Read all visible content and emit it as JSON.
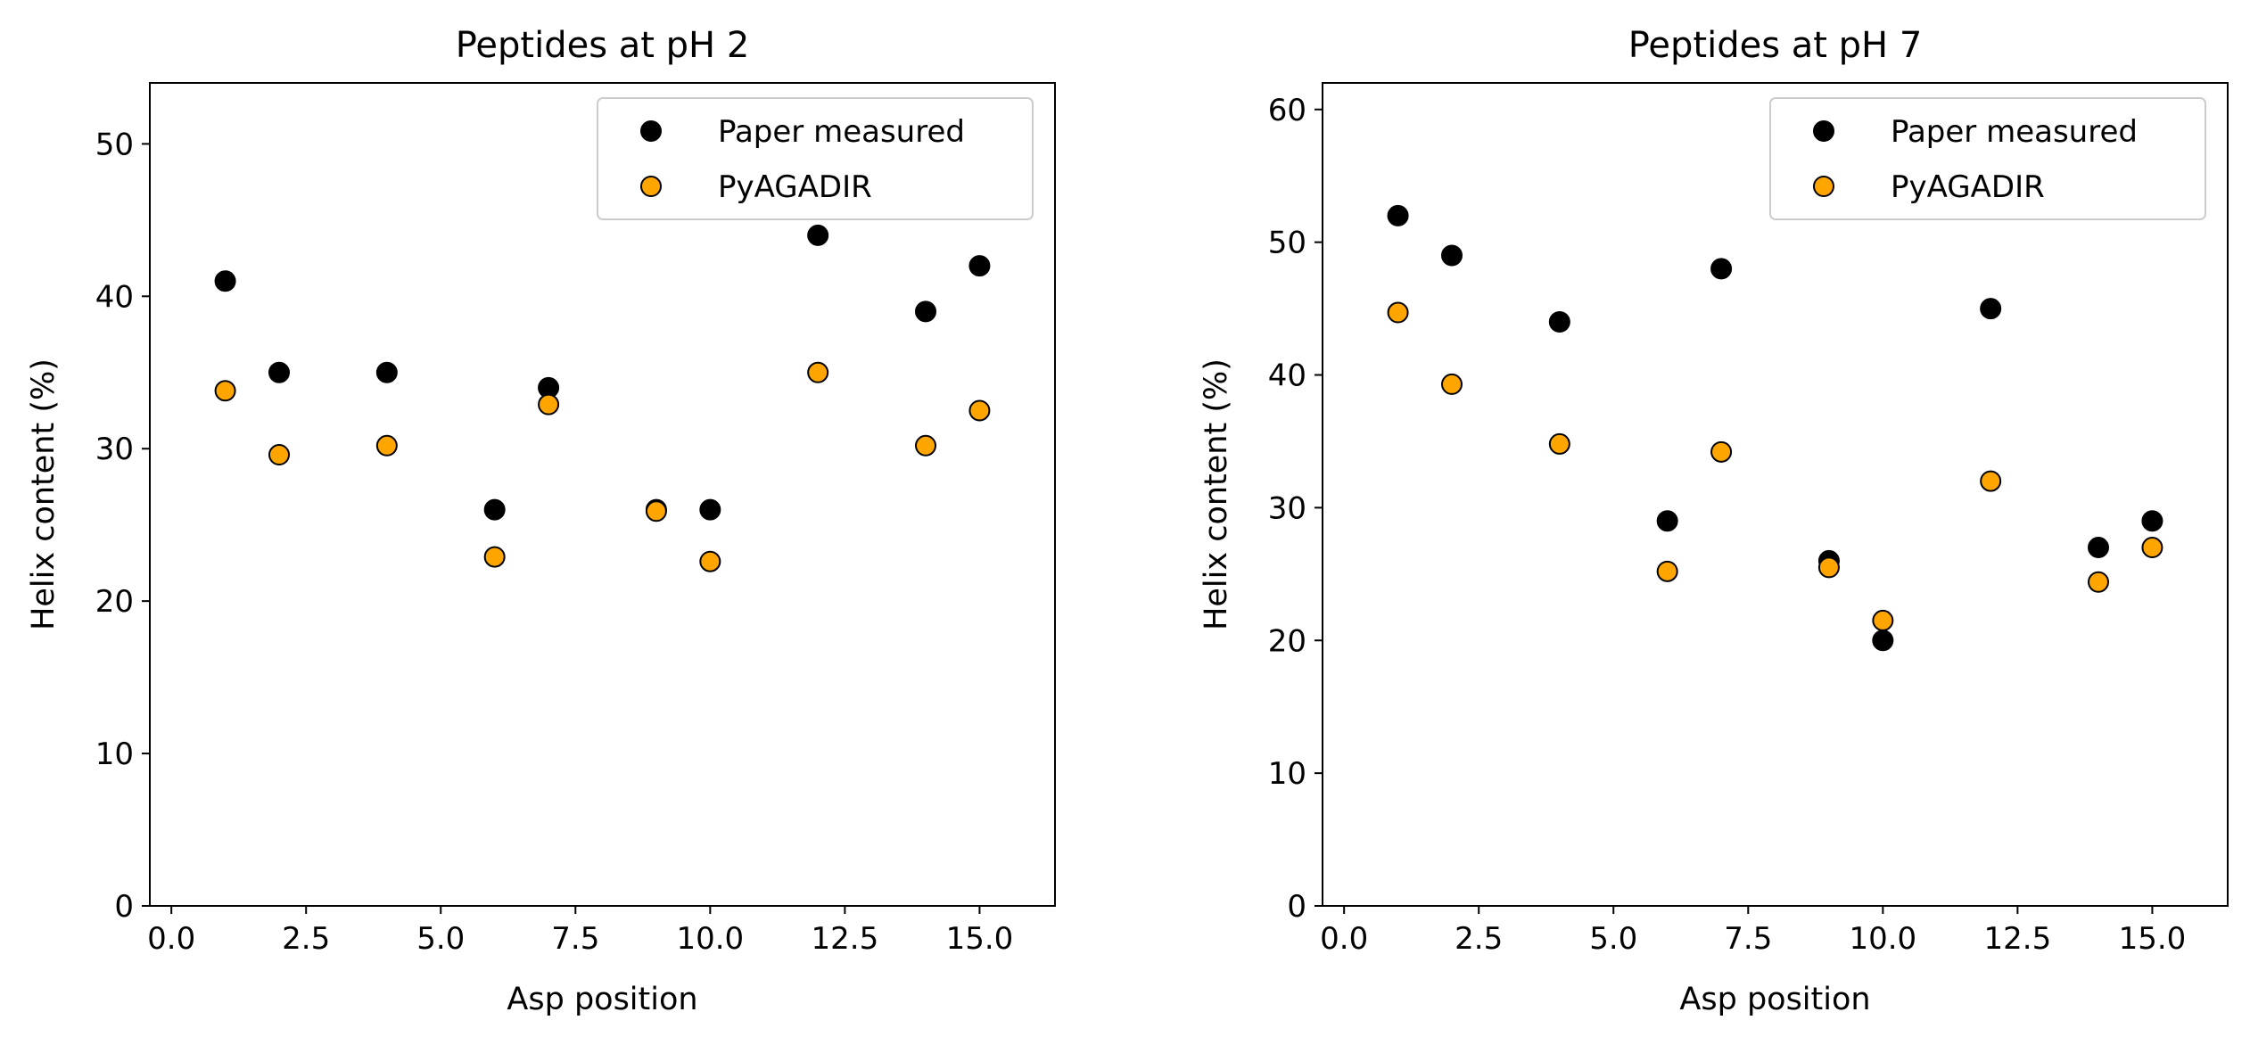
{
  "chart_data": [
    {
      "type": "scatter",
      "title": "Peptides at pH 2",
      "xlabel": "Asp position",
      "ylabel": "Helix content (%)",
      "xlim": [
        -0.4,
        16.4
      ],
      "ylim": [
        0,
        54
      ],
      "xticks": [
        0.0,
        2.5,
        5.0,
        7.5,
        10.0,
        12.5,
        15.0
      ],
      "xtick_labels": [
        "0.0",
        "2.5",
        "5.0",
        "7.5",
        "10.0",
        "12.5",
        "15.0"
      ],
      "yticks": [
        0,
        10,
        20,
        30,
        40,
        50
      ],
      "ytick_labels": [
        "0",
        "10",
        "20",
        "30",
        "40",
        "50"
      ],
      "grid": false,
      "legend": "top-right",
      "series": [
        {
          "name": "Paper measured",
          "color": "#000000",
          "edge": "#000000",
          "x": [
            1,
            2,
            4,
            6,
            7,
            9,
            10,
            12,
            14,
            15
          ],
          "y": [
            41,
            35,
            35,
            26,
            34,
            26,
            26,
            44,
            39,
            42
          ]
        },
        {
          "name": "PyAGADIR",
          "color": "#FFA500",
          "edge": "#000000",
          "x": [
            1,
            2,
            4,
            6,
            7,
            9,
            10,
            12,
            14,
            15
          ],
          "y": [
            33.8,
            29.6,
            30.2,
            22.9,
            32.9,
            25.9,
            22.6,
            35.0,
            30.2,
            32.5
          ]
        }
      ]
    },
    {
      "type": "scatter",
      "title": "Peptides at pH 7",
      "xlabel": "Asp position",
      "ylabel": "Helix content (%)",
      "xlim": [
        -0.4,
        16.4
      ],
      "ylim": [
        0,
        62
      ],
      "xticks": [
        0.0,
        2.5,
        5.0,
        7.5,
        10.0,
        12.5,
        15.0
      ],
      "xtick_labels": [
        "0.0",
        "2.5",
        "5.0",
        "7.5",
        "10.0",
        "12.5",
        "15.0"
      ],
      "yticks": [
        0,
        10,
        20,
        30,
        40,
        50,
        60
      ],
      "ytick_labels": [
        "0",
        "10",
        "20",
        "30",
        "40",
        "50",
        "60"
      ],
      "grid": false,
      "legend": "top-right",
      "series": [
        {
          "name": "Paper measured",
          "color": "#000000",
          "edge": "#000000",
          "x": [
            1,
            2,
            4,
            6,
            7,
            9,
            10,
            12,
            14,
            15
          ],
          "y": [
            52,
            49,
            44,
            29,
            48,
            26,
            20,
            45,
            27,
            29
          ]
        },
        {
          "name": "PyAGADIR",
          "color": "#FFA500",
          "edge": "#000000",
          "x": [
            1,
            2,
            4,
            6,
            7,
            9,
            10,
            12,
            14,
            15
          ],
          "y": [
            44.7,
            39.3,
            34.8,
            25.2,
            34.2,
            25.5,
            21.5,
            32.0,
            24.4,
            27.0
          ]
        }
      ]
    }
  ]
}
